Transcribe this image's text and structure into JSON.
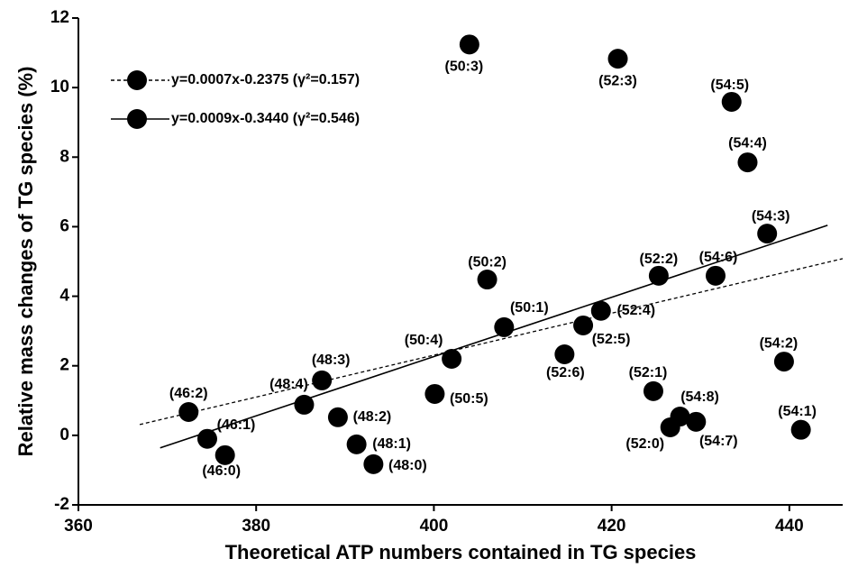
{
  "chart_data": {
    "type": "scatter",
    "xlabel": "Theoretical ATP numbers contained in TG species",
    "ylabel": "Relative mass changes of TG species (%)",
    "xlim": [
      360,
      446
    ],
    "ylim": [
      -2,
      12
    ],
    "xticks": [
      360,
      380,
      400,
      420,
      440
    ],
    "yticks": [
      -2,
      0,
      2,
      4,
      6,
      8,
      10,
      12
    ],
    "grid": false,
    "legend": "upper left",
    "points": {
      "color": "#000000",
      "labels": [
        "(46:2)",
        "(46:1)",
        "(46:0)",
        "(48:4)",
        "(48:3)",
        "(48:2)",
        "(48:1)",
        "(48:0)",
        "(50:5)",
        "(50:4)",
        "(50:2)",
        "(50:1)",
        "(50:3)",
        "(52:3)",
        "(52:6)",
        "(52:5)",
        "(52:4)",
        "(52:2)",
        "(52:1)",
        "(52:0)",
        "(54:8)",
        "(54:7)",
        "(54:6)",
        "(54:5)",
        "(54:4)",
        "(54:3)",
        "(54:2)",
        "(54:1)"
      ],
      "x": [
        372.4,
        374.5,
        376.5,
        385.4,
        387.4,
        389.2,
        391.3,
        393.2,
        400.1,
        402.0,
        406.0,
        407.9,
        404.0,
        420.7,
        414.7,
        416.8,
        418.8,
        425.3,
        424.7,
        426.6,
        427.7,
        429.5,
        431.7,
        433.5,
        435.3,
        437.5,
        439.4,
        441.3
      ],
      "values": [
        0.67,
        -0.1,
        -0.57,
        0.88,
        1.58,
        0.52,
        -0.26,
        -0.83,
        1.19,
        2.2,
        4.48,
        3.11,
        11.24,
        10.83,
        2.33,
        3.16,
        3.58,
        4.59,
        1.27,
        0.23,
        0.54,
        0.39,
        4.59,
        9.59,
        7.85,
        5.8,
        2.12,
        0.16
      ]
    },
    "series": [
      {
        "name": "y=0.0007x-0.2375 (γ²=0.157)",
        "color": "#000000",
        "dashed": true,
        "x": [
          366.9,
          446
        ],
        "values": [
          0.31,
          5.08
        ]
      },
      {
        "name": "y=0.0009x-0.3440 (γ²=0.546)",
        "color": "#000000",
        "dashed": false,
        "x": [
          369.2,
          444.3
        ],
        "values": [
          -0.36,
          6.04
        ]
      }
    ]
  }
}
